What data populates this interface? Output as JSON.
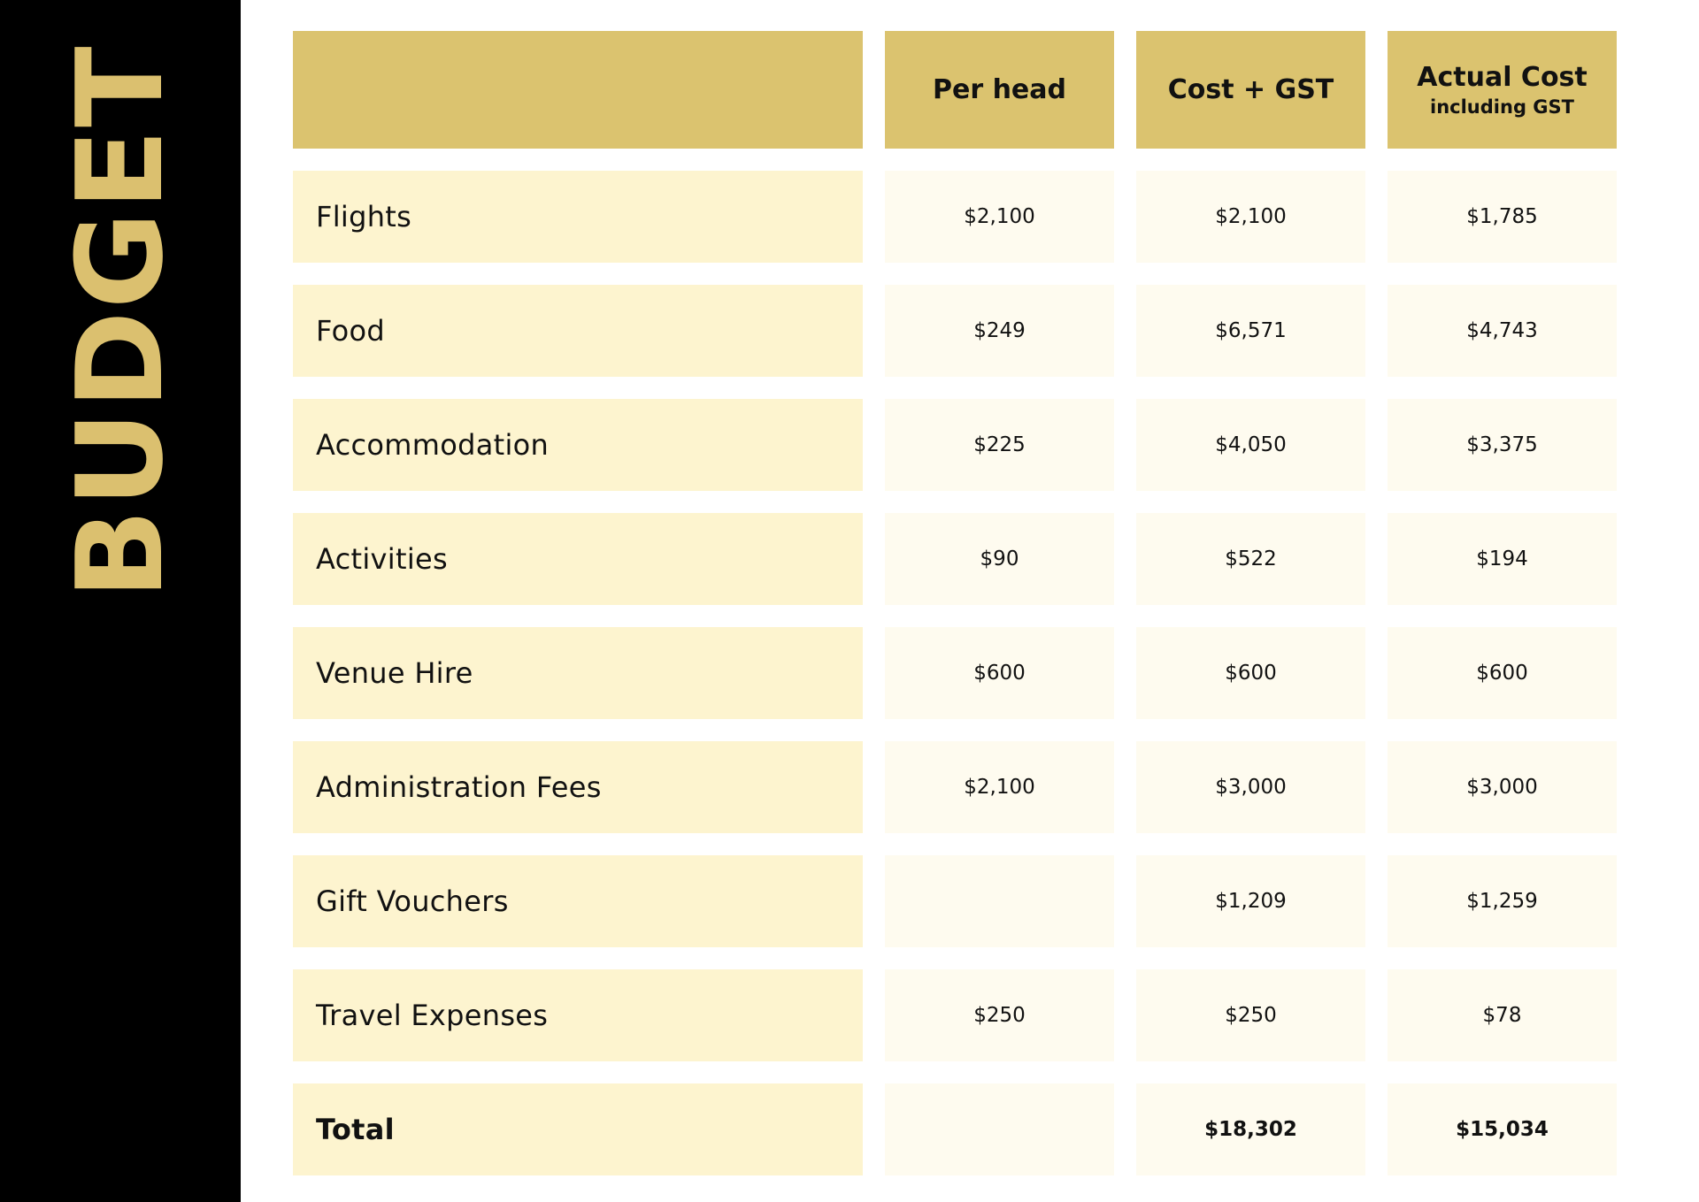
{
  "side_title": "BUDGET",
  "colors": {
    "sidebar": "#000000",
    "accent_gold": "#dbc36f",
    "label_fill": "#fdf4cf",
    "value_fill": "#fefbef"
  },
  "table": {
    "headers": {
      "label": "",
      "per_head": "Per head",
      "cost_gst": "Cost + GST",
      "actual_cost": "Actual Cost",
      "actual_cost_sub": "including GST"
    },
    "rows": [
      {
        "label": "Flights",
        "per_head": "$2,100",
        "cost_gst": "$2,100",
        "actual": "$1,785"
      },
      {
        "label": "Food",
        "per_head": "$249",
        "cost_gst": "$6,571",
        "actual": "$4,743"
      },
      {
        "label": "Accommodation",
        "per_head": "$225",
        "cost_gst": "$4,050",
        "actual": "$3,375"
      },
      {
        "label": "Activities",
        "per_head": "$90",
        "cost_gst": "$522",
        "actual": "$194"
      },
      {
        "label": "Venue Hire",
        "per_head": "$600",
        "cost_gst": "$600",
        "actual": "$600"
      },
      {
        "label": "Administration Fees",
        "per_head": "$2,100",
        "cost_gst": "$3,000",
        "actual": "$3,000"
      },
      {
        "label": "Gift Vouchers",
        "per_head": "",
        "cost_gst": "$1,209",
        "actual": "$1,259"
      },
      {
        "label": "Travel Expenses",
        "per_head": "$250",
        "cost_gst": "$250",
        "actual": "$78"
      }
    ],
    "total": {
      "label": "Total",
      "per_head": "",
      "cost_gst": "$18,302",
      "actual": "$15,034"
    }
  }
}
